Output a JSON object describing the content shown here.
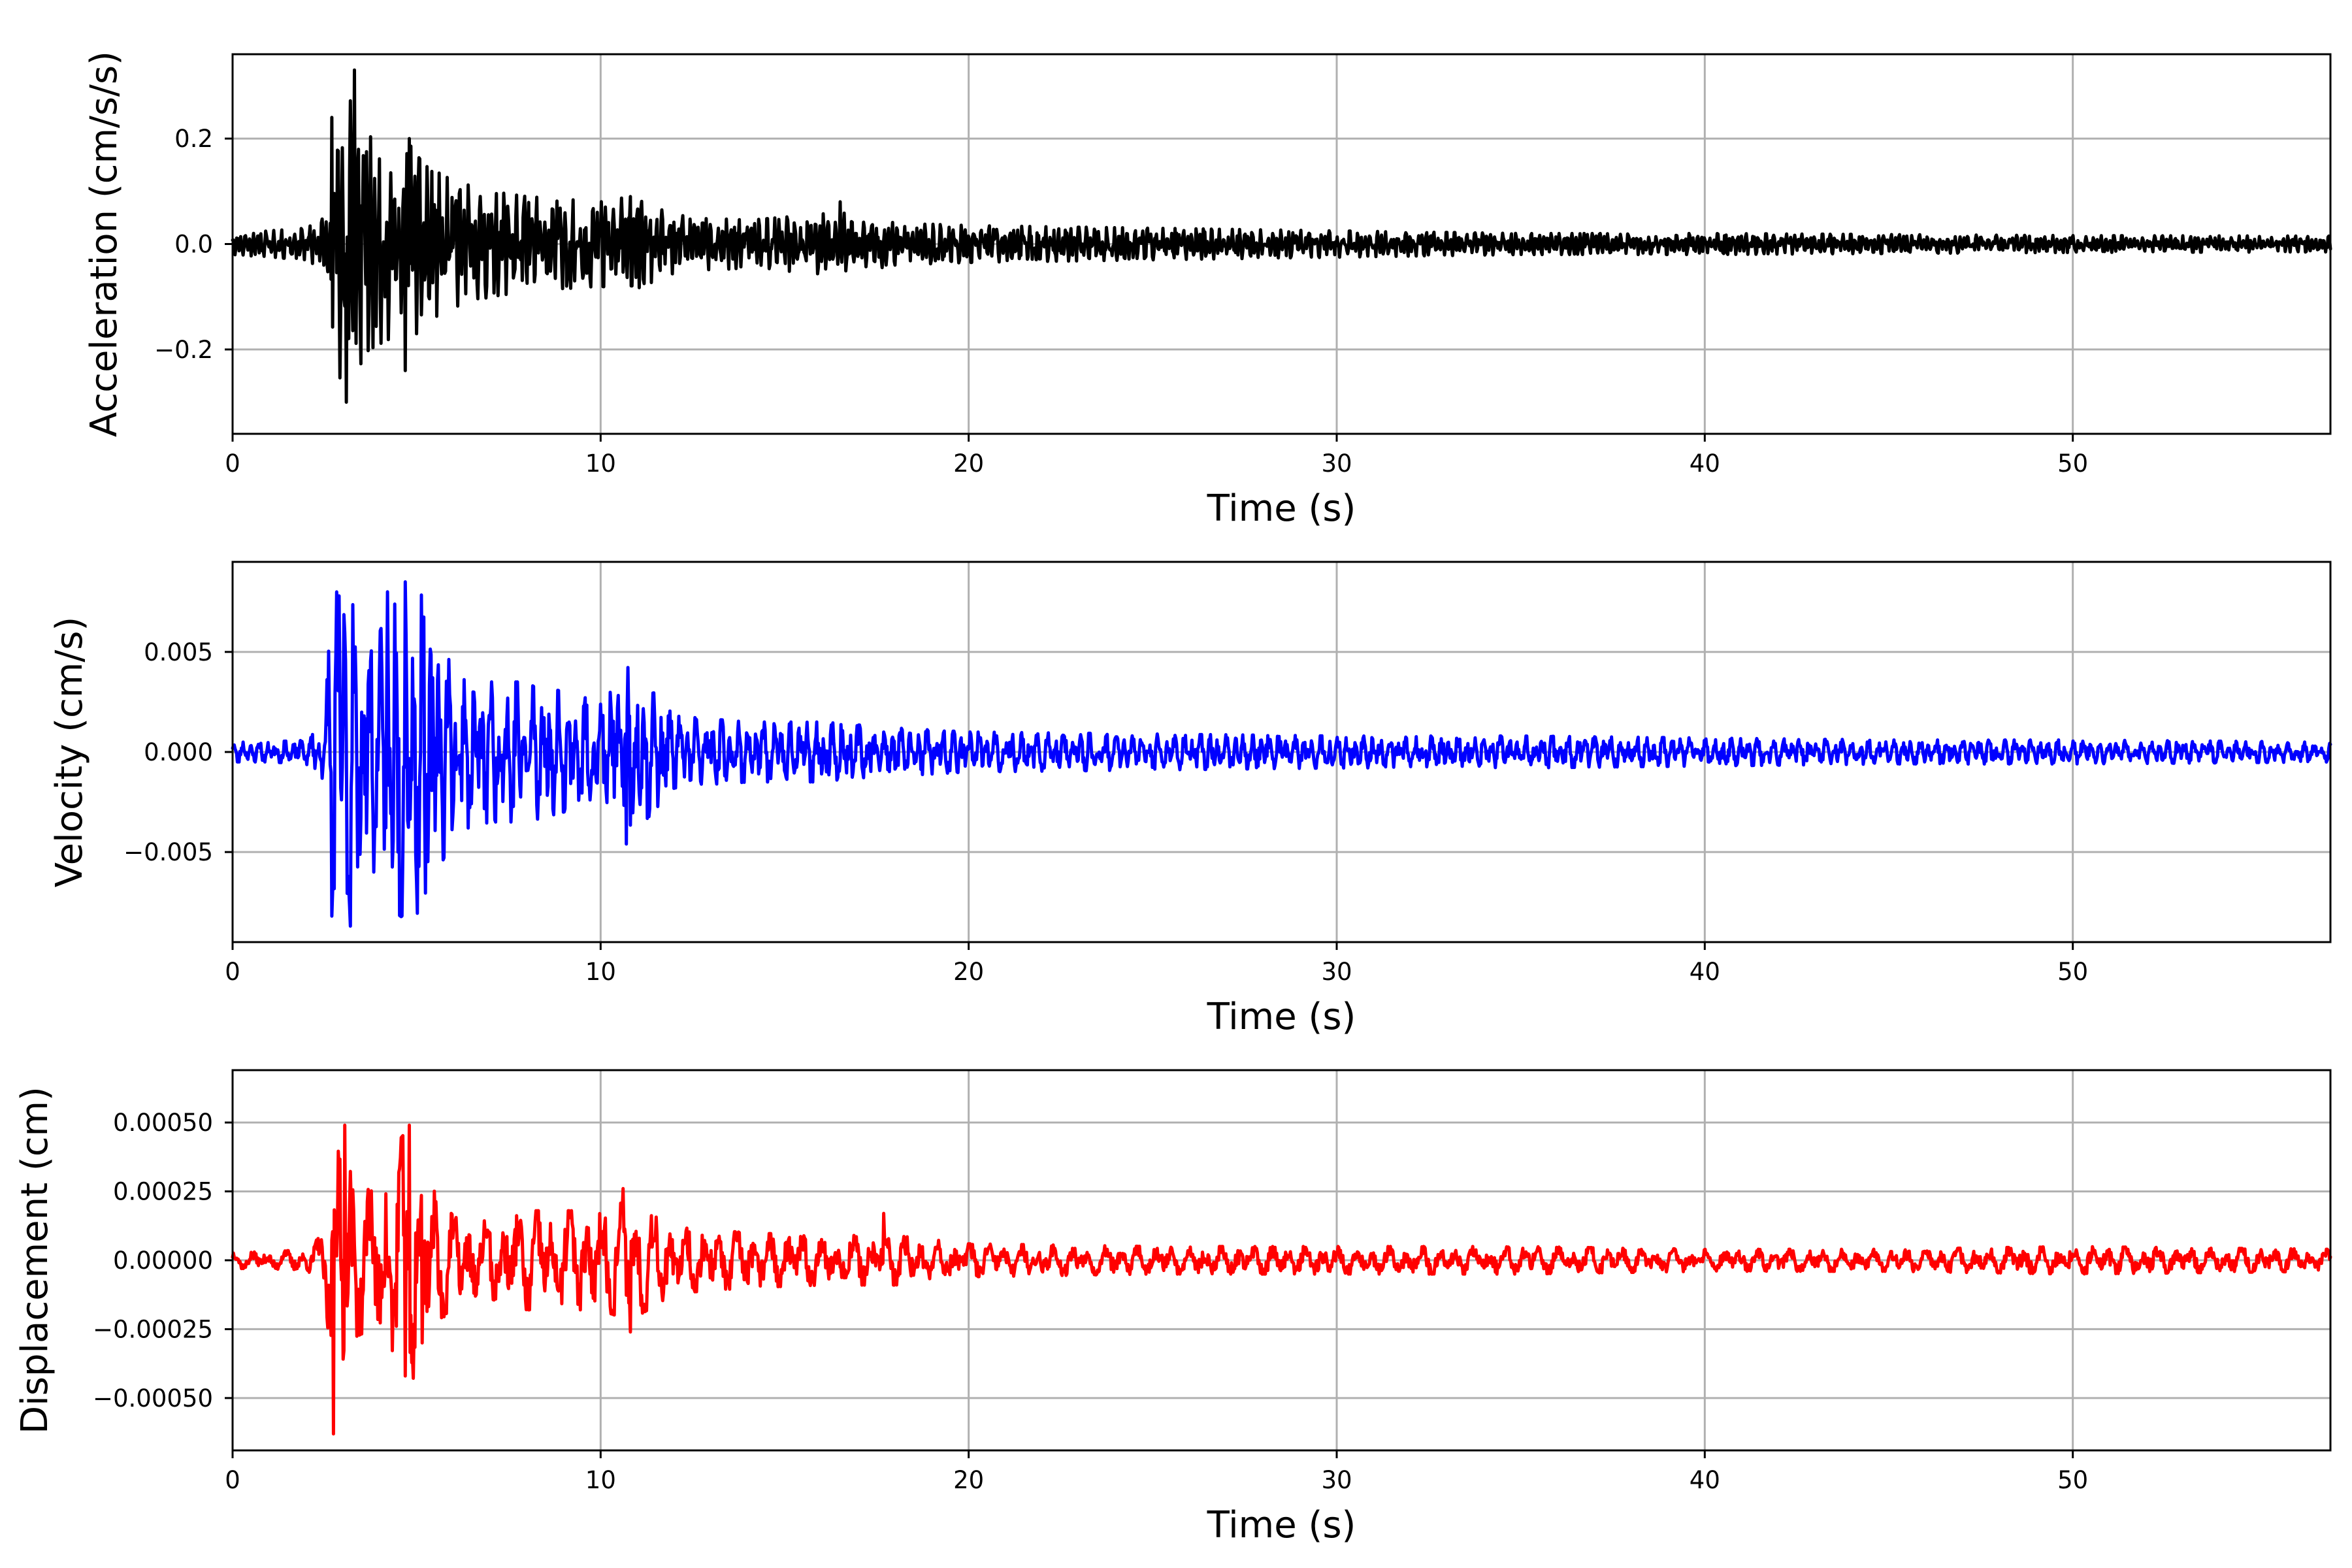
{
  "chart_data": [
    {
      "type": "line",
      "xlabel": "Time (s)",
      "ylabel": "Acceleration (cm/s/s)",
      "xlim": [
        0,
        57
      ],
      "ylim": [
        -0.36,
        0.36
      ],
      "grid": true,
      "color": "#000000",
      "xticks": [
        0,
        10,
        20,
        30,
        40,
        50
      ],
      "xtick_labels": [
        "0",
        "10",
        "20",
        "30",
        "40",
        "50"
      ],
      "yticks": [
        -0.2,
        0.0,
        0.2
      ],
      "ytick_labels": [
        "−0.2",
        "0.0",
        "0.2"
      ],
      "series": [
        {
          "x": [
            0,
            1,
            2,
            2.5,
            2.7,
            2.9,
            3.1,
            3.3,
            3.5,
            3.8,
            4.2,
            4.7,
            5.2,
            6,
            7,
            8,
            9,
            10,
            10.8,
            12,
            14,
            16.5,
            18,
            20,
            25,
            30,
            35,
            40,
            45,
            50,
            57
          ],
          "envelope": [
            0.02,
            0.025,
            0.03,
            0.05,
            0.22,
            0.25,
            0.3,
            0.32,
            0.22,
            0.2,
            0.18,
            0.2,
            0.15,
            0.12,
            0.1,
            0.09,
            0.085,
            0.08,
            0.09,
            0.055,
            0.045,
            0.06,
            0.04,
            0.035,
            0.03,
            0.025,
            0.02,
            0.02,
            0.018,
            0.016,
            0.015
          ],
          "peaks": [
            [
              2.7,
              0.24
            ],
            [
              3.1,
              -0.3
            ],
            [
              3.3,
              0.33
            ],
            [
              4.7,
              -0.24
            ],
            [
              4.8,
              0.2
            ],
            [
              10.8,
              0.09
            ],
            [
              16.5,
              0.08
            ]
          ]
        }
      ]
    },
    {
      "type": "line",
      "xlabel": "Time (s)",
      "ylabel": "Velocity (cm/s)",
      "xlim": [
        0,
        57
      ],
      "ylim": [
        -0.0095,
        0.0095
      ],
      "grid": true,
      "color": "#0000ff",
      "xticks": [
        0,
        10,
        20,
        30,
        40,
        50
      ],
      "xtick_labels": [
        "0",
        "10",
        "20",
        "30",
        "40",
        "50"
      ],
      "yticks": [
        -0.005,
        0.0,
        0.005
      ],
      "ytick_labels": [
        "−0.005",
        "0.000",
        "0.005"
      ],
      "series": [
        {
          "x": [
            0,
            1,
            2,
            2.5,
            2.7,
            3.0,
            3.2,
            3.5,
            4.0,
            4.4,
            4.8,
            5.3,
            6,
            7,
            8,
            9,
            10,
            10.7,
            12,
            14,
            16,
            18,
            20,
            25,
            30,
            35,
            40,
            45,
            50,
            57
          ],
          "envelope": [
            0.0005,
            0.0005,
            0.0006,
            0.0015,
            0.008,
            0.0085,
            0.0085,
            0.006,
            0.006,
            0.008,
            0.0085,
            0.0075,
            0.004,
            0.0035,
            0.0035,
            0.003,
            0.0025,
            0.0045,
            0.0018,
            0.0015,
            0.0015,
            0.0012,
            0.001,
            0.0009,
            0.0008,
            0.0008,
            0.0007,
            0.0006,
            0.0006,
            0.0005
          ],
          "peaks": [
            [
              2.7,
              -0.0082
            ],
            [
              2.9,
              0.0078
            ],
            [
              3.2,
              -0.0087
            ],
            [
              4.2,
              0.008
            ],
            [
              4.5,
              -0.005
            ],
            [
              4.7,
              0.0085
            ],
            [
              5.0,
              -0.0065
            ],
            [
              10.7,
              -0.0046
            ]
          ]
        }
      ]
    },
    {
      "type": "line",
      "xlabel": "Time (s)",
      "ylabel": "Displacement (cm)",
      "xlim": [
        0,
        57
      ],
      "ylim": [
        -0.00069,
        0.00069
      ],
      "grid": true,
      "color": "#ff0000",
      "xticks": [
        0,
        10,
        20,
        30,
        40,
        50
      ],
      "xtick_labels": [
        "0",
        "10",
        "20",
        "30",
        "40",
        "50"
      ],
      "yticks": [
        -0.0005,
        -0.00025,
        0.0,
        0.00025,
        0.0005
      ],
      "ytick_labels": [
        "−0.00050",
        "−0.00025",
        "0.00000",
        "0.00025",
        "0.00050"
      ],
      "series": [
        {
          "x": [
            0,
            1,
            2,
            2.5,
            2.8,
            3.0,
            3.3,
            3.8,
            4.3,
            4.8,
            5.2,
            6,
            7,
            8,
            9,
            10,
            10.8,
            12,
            14,
            16,
            18,
            20,
            25,
            30,
            35,
            40,
            45,
            50,
            57
          ],
          "envelope": [
            3e-05,
            3e-05,
            4e-05,
            0.0001,
            0.0006,
            0.0005,
            0.00028,
            0.00025,
            0.0004,
            0.00048,
            0.0003,
            0.00016,
            0.00014,
            0.00018,
            0.00018,
            0.00018,
            0.00022,
            0.00012,
            0.0001,
            9e-05,
            9e-05,
            6e-05,
            5e-05,
            5e-05,
            5e-05,
            4e-05,
            4e-05,
            5e-05,
            4e-05
          ],
          "peaks": [
            [
              2.75,
              -0.00063
            ],
            [
              3.05,
              0.00049
            ],
            [
              4.7,
              -0.00042
            ],
            [
              4.8,
              0.00049
            ],
            [
              5.15,
              -0.0003
            ],
            [
              10.6,
              0.00026
            ],
            [
              10.8,
              -0.00026
            ],
            [
              17.7,
              0.00017
            ]
          ]
        }
      ]
    }
  ]
}
